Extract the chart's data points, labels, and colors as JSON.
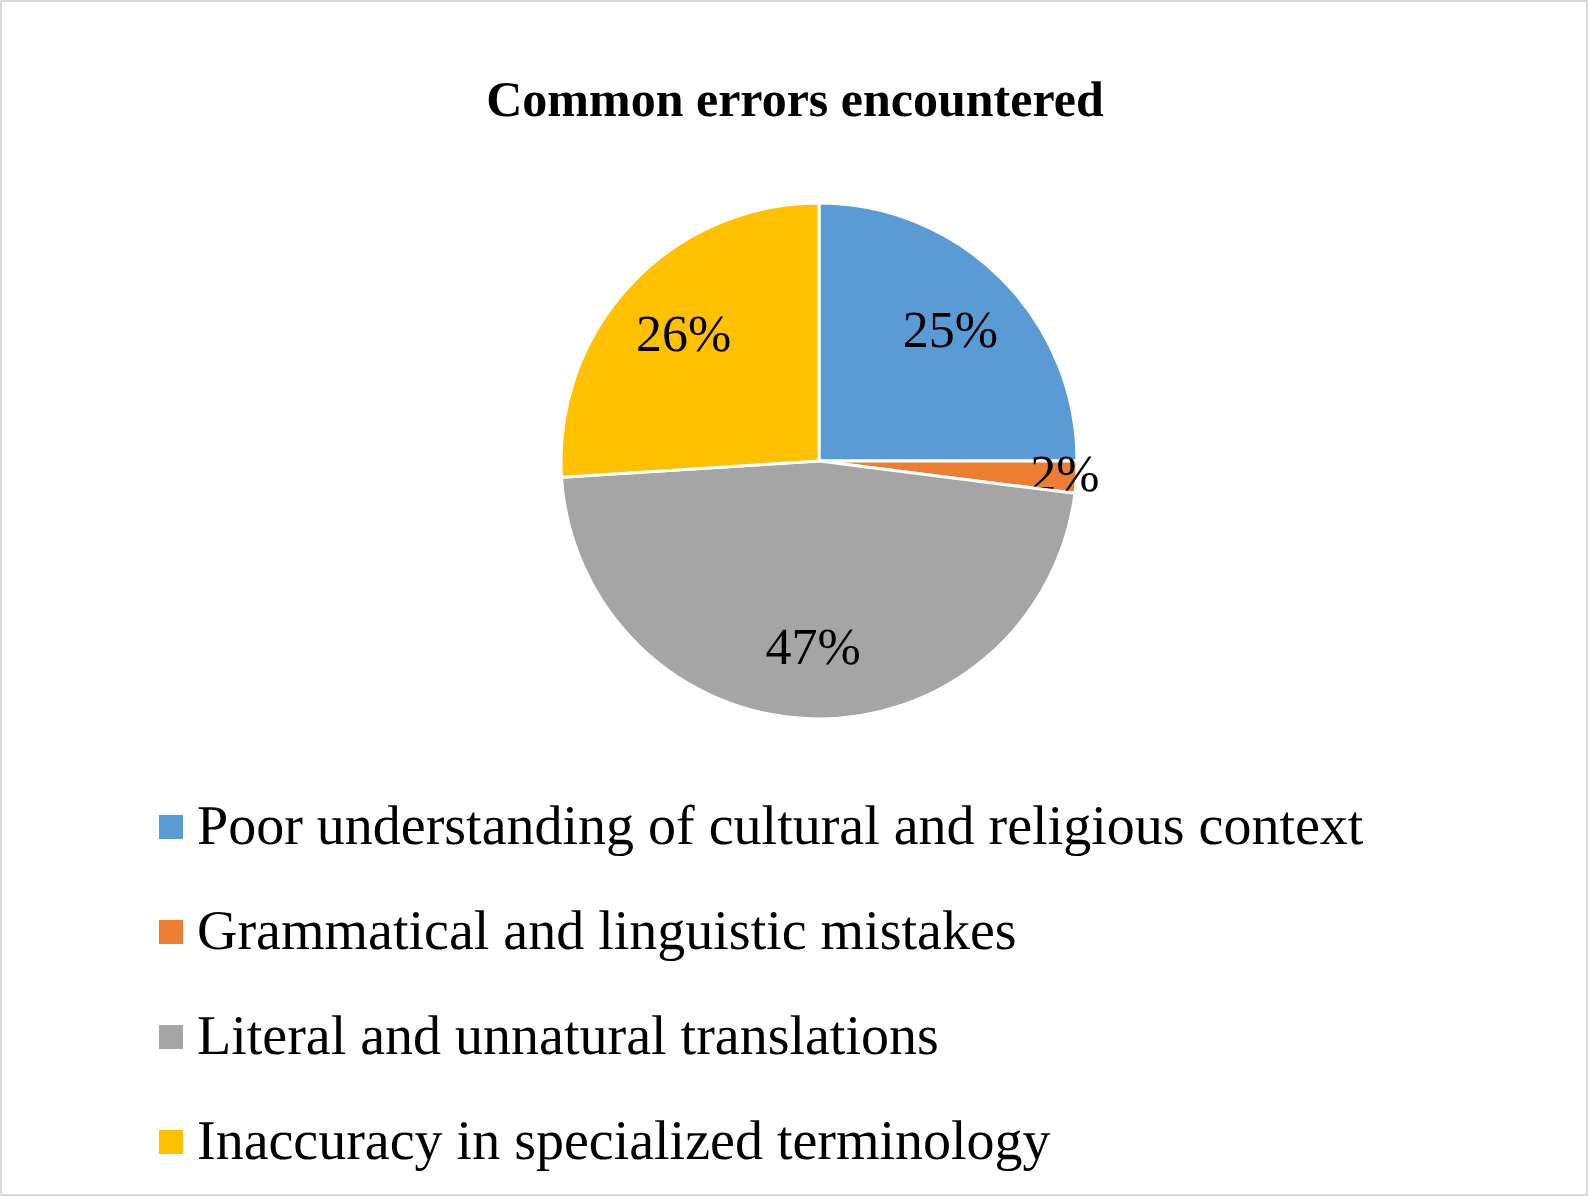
{
  "chart_data": {
    "type": "pie",
    "title": "Common errors encountered",
    "categories": [
      "Poor understanding of cultural and religious context",
      "Grammatical and linguistic mistakes",
      "Literal and unnatural translations",
      "Inaccuracy in specialized terminology"
    ],
    "values": [
      25,
      2,
      47,
      26
    ],
    "value_labels": [
      "25%",
      "2%",
      "47%",
      "26%"
    ],
    "colors": [
      "#5b9bd5",
      "#ed7d31",
      "#a5a5a5",
      "#ffc000"
    ],
    "legend": "bottom"
  }
}
